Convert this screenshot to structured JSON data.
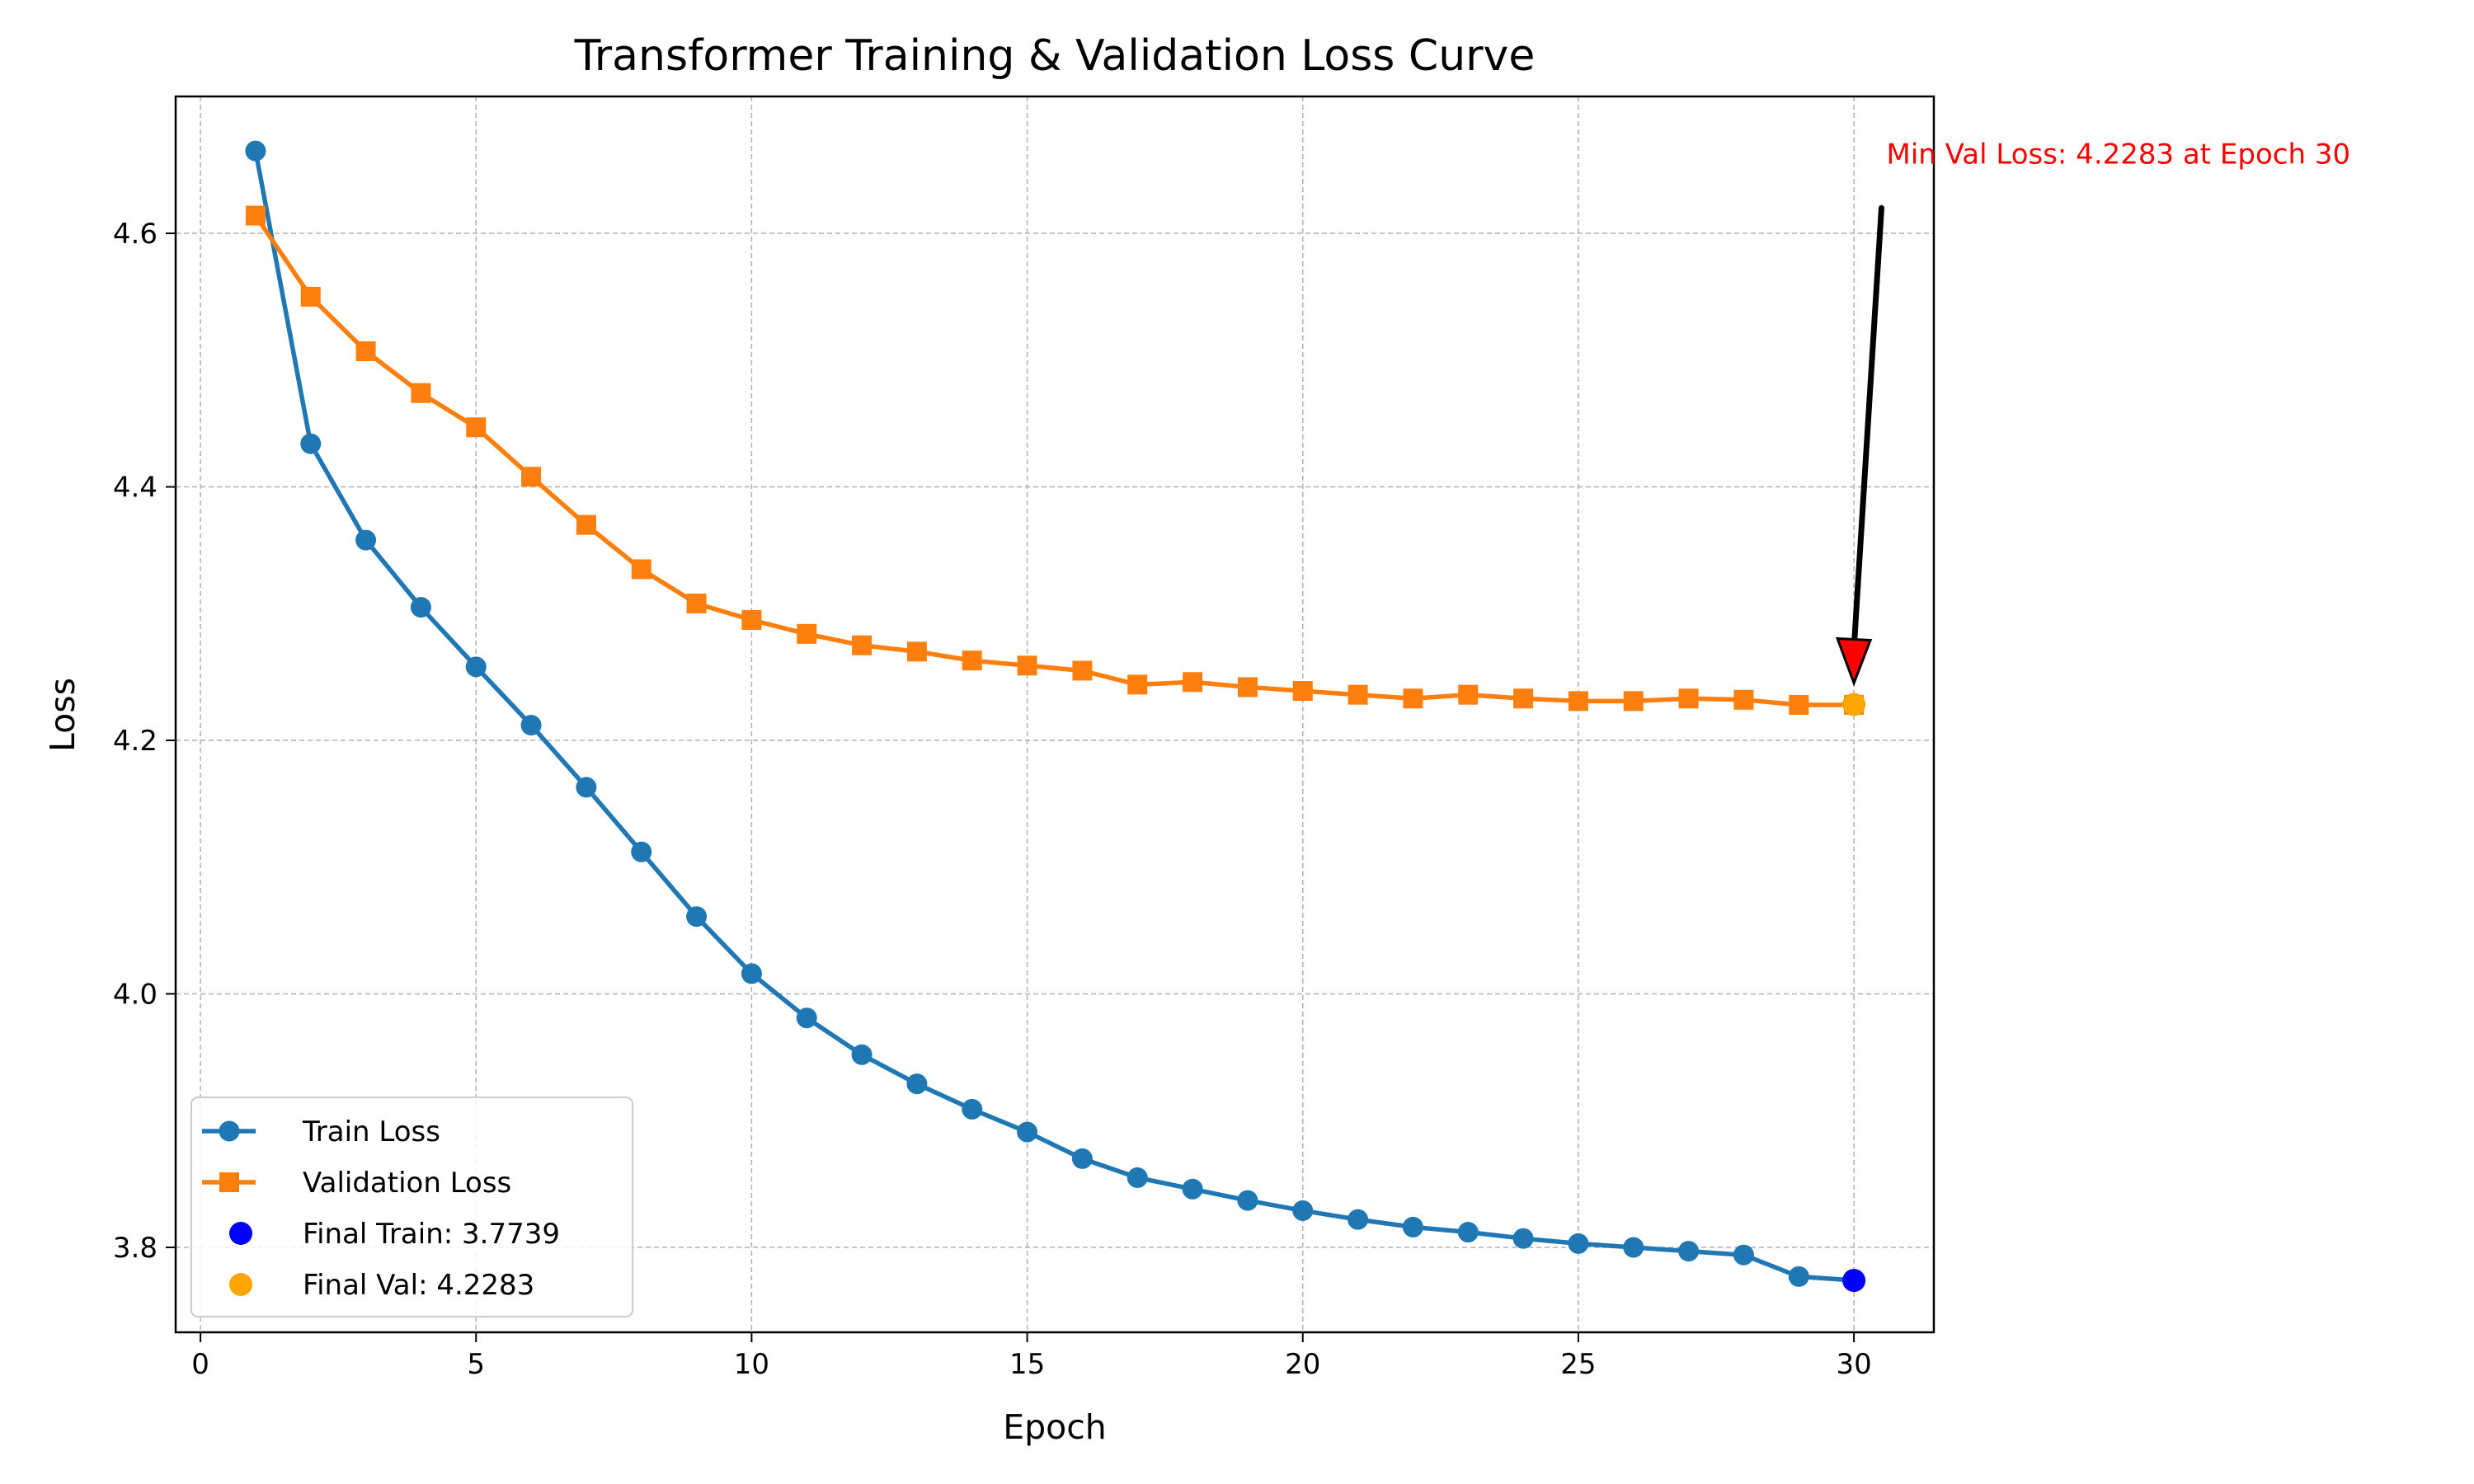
{
  "chart_data": {
    "type": "line",
    "title": "Transformer Training & Validation Loss Curve",
    "xlabel": "Epoch",
    "ylabel": "Loss",
    "xlim": [
      -0.45,
      31.45
    ],
    "ylim": [
      3.733,
      4.708
    ],
    "xticks": [
      0,
      5,
      10,
      15,
      20,
      25,
      30
    ],
    "yticks": [
      3.8,
      4.0,
      4.2,
      4.4,
      4.6
    ],
    "grid": true,
    "legend_position": "lower-left",
    "x": [
      1,
      2,
      3,
      4,
      5,
      6,
      7,
      8,
      9,
      10,
      11,
      12,
      13,
      14,
      15,
      16,
      17,
      18,
      19,
      20,
      21,
      22,
      23,
      24,
      25,
      26,
      27,
      28,
      29,
      30
    ],
    "series": [
      {
        "name": "Train Loss",
        "marker": "circle",
        "color": "#1f77b4",
        "values": [
          4.665,
          4.434,
          4.358,
          4.305,
          4.258,
          4.212,
          4.163,
          4.112,
          4.061,
          4.016,
          3.981,
          3.952,
          3.929,
          3.909,
          3.891,
          3.87,
          3.855,
          3.846,
          3.837,
          3.829,
          3.822,
          3.816,
          3.812,
          3.807,
          3.803,
          3.8,
          3.797,
          3.794,
          3.777,
          3.774
        ]
      },
      {
        "name": "Validation Loss",
        "marker": "square",
        "color": "#ff7f0e",
        "values": [
          4.614,
          4.55,
          4.507,
          4.474,
          4.447,
          4.408,
          4.37,
          4.335,
          4.308,
          4.295,
          4.284,
          4.275,
          4.27,
          4.263,
          4.259,
          4.255,
          4.244,
          4.246,
          4.242,
          4.239,
          4.236,
          4.233,
          4.236,
          4.233,
          4.231,
          4.231,
          4.233,
          4.232,
          4.228,
          4.228
        ]
      }
    ],
    "highlights": [
      {
        "name": "Final Train: 3.7739",
        "x": 30,
        "y": 3.7739,
        "color": "#0000ff"
      },
      {
        "name": "Final Val: 4.2283",
        "x": 30,
        "y": 4.2283,
        "color": "#ffa500"
      }
    ],
    "annotation": {
      "text": "Min Val Loss: 4.2283 at Epoch 30",
      "color": "#ff0000",
      "arrow_color": "#000000",
      "arrow_head_color": "#ff0000",
      "point": {
        "x": 30,
        "y": 4.2283
      },
      "text_anchor_point": {
        "x": 30.5,
        "y": 4.62
      }
    }
  }
}
